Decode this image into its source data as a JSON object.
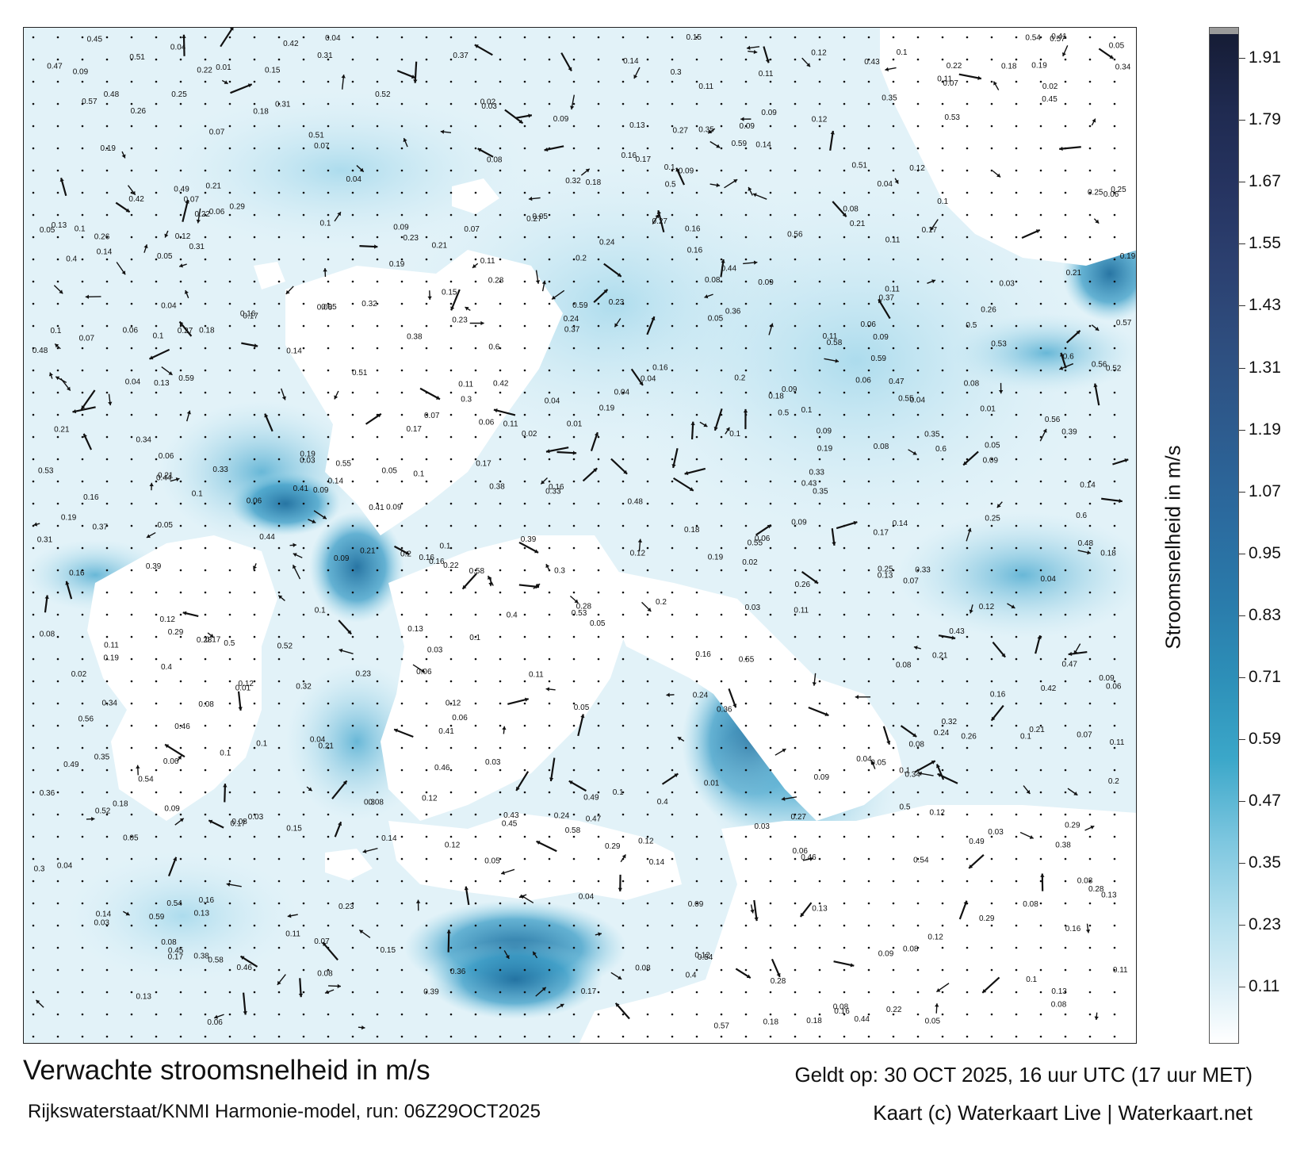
{
  "map": {
    "title": "Verwachte stroomsnelheid in m/s",
    "model_credit": "Rijkswaterstaat/KNMI Harmonie-model, run: 06Z29OCT2025",
    "valid_time": "Geldt op: 30 OCT 2025, 16 uur UTC (17 uur MET)",
    "map_credit": "Kaart (c) Waterkaart Live | Waterkaart.net"
  },
  "colorbar": {
    "label": "Stroomsnelheid in m/s",
    "ticks": [
      "1.91",
      "1.79",
      "1.67",
      "1.55",
      "1.43",
      "1.31",
      "1.19",
      "1.07",
      "0.95",
      "0.83",
      "0.71",
      "0.59",
      "0.47",
      "0.35",
      "0.23",
      "0.11"
    ],
    "tick_values": [
      1.91,
      1.79,
      1.67,
      1.55,
      1.43,
      1.31,
      1.19,
      1.07,
      0.95,
      0.83,
      0.71,
      0.59,
      0.47,
      0.35,
      0.23,
      0.11
    ],
    "range": [
      0,
      1.97
    ],
    "colors": {
      "low": "#ffffff",
      "mid_low": "#7cc6df",
      "mid": "#2a7aaa",
      "high": "#2c4171",
      "max": "#151b33",
      "overflow": "#9a9a9a"
    }
  },
  "speed_labels": [
    "0.1",
    "0.08",
    "0.07",
    "0.03",
    "0.11",
    "0.09",
    "0.05",
    "0.06",
    "0.08",
    "0.12",
    "0.1",
    "0.02",
    "0.05",
    "0.04",
    "0.06",
    "0.01",
    "0.03",
    "0.04",
    "0.08",
    "0.16",
    "0.12",
    "0.07",
    "0.06",
    "0.1",
    "0.11",
    "0.09",
    "0.04",
    "0.08",
    "0.09",
    "0.1",
    "0.15",
    "0.17",
    "0.16",
    "0.11",
    "0.05",
    "0.09",
    "0.18",
    "0.21",
    "0.19",
    "0.23",
    "0.24",
    "0.13",
    "0.12",
    "0.14",
    "0.25",
    "0.27",
    "0.26",
    "0.22",
    "0.16",
    "0.13",
    "0.2",
    "0.21",
    "0.19",
    "0.17",
    "0.18",
    "0.14",
    "0.28",
    "0.3",
    "0.29",
    "0.35",
    "0.4",
    "0.54",
    "0.5",
    "0.59",
    "0.46",
    "0.43",
    "0.58",
    "0.38",
    "0.37",
    "0.34",
    "0.33",
    "0.31",
    "0.32",
    "0.36",
    "0.39",
    "0.41",
    "0.42",
    "0.44",
    "0.47",
    "0.45",
    "0.49",
    "0.51",
    "0.52",
    "0.56",
    "0.57",
    "0.6",
    "0.55",
    "0.53",
    "0.48"
  ],
  "colors": {
    "land": "#ffffff",
    "sea_light": "#dff0f7",
    "sea_mid": "#5fb6d5",
    "sea_dark": "#1f6f9f",
    "arrow": "#111111",
    "frame": "#222222"
  }
}
